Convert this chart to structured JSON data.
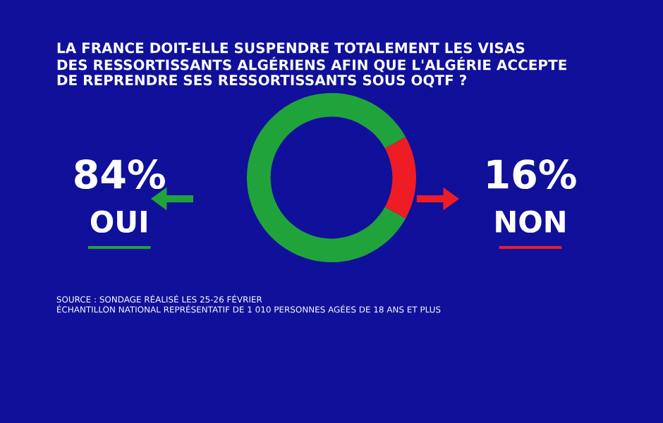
{
  "chart_data": {
    "type": "donut",
    "title": "LA FRANCE DOIT-ELLE SUSPENDRE TOTALEMENT LES VISAS\nDES RESSORTISSANTS ALGÉRIENS AFIN QUE L'ALGÉRIE ACCEPTE\nDE REPRENDRE SES RESSORTISSANTS SOUS OQTF ?",
    "categories": [
      "OUI",
      "NON"
    ],
    "values": [
      84,
      16
    ],
    "colors": [
      "#21a33b",
      "#ee1c25"
    ],
    "value_labels": [
      "84%",
      "16%"
    ],
    "annotations": [
      "SOURCE : SONDAGE RÉALISÉ LES 25-26 FÉVRIER\nÉCHANTILLON NATIONAL REPRÉSENTATIF DE 1 010 PERSONNES AGÉES DE 18 ANS ET PLUS"
    ]
  }
}
